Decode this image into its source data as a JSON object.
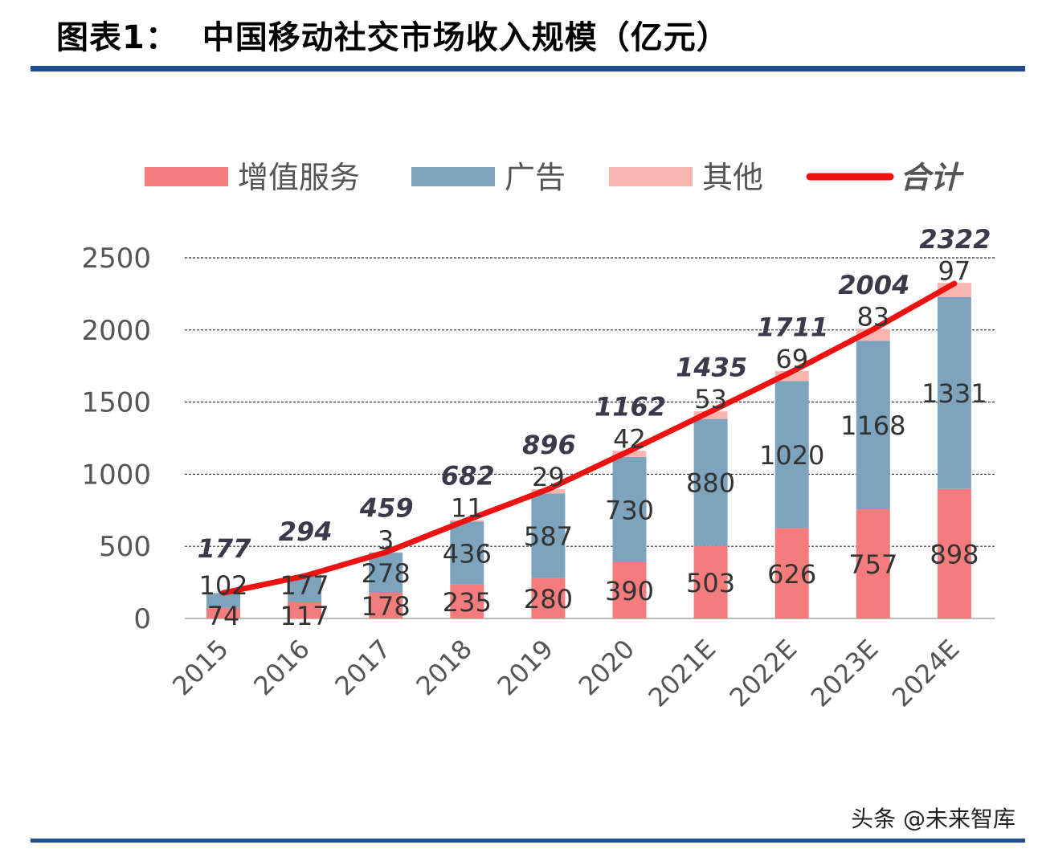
{
  "title": {
    "label": "图表1：",
    "text": "中国移动社交市场收入规模（亿元）"
  },
  "watermark": "头条 @未来智库",
  "colors": {
    "value_added": "#f47c7c",
    "ads": "#7da3bd",
    "other": "#f9b6b0",
    "total": "#ee1111",
    "rule": "#1f4e8f"
  },
  "chart_data": {
    "type": "bar",
    "stacked": true,
    "categories": [
      "2015",
      "2016",
      "2017",
      "2018",
      "2019",
      "2020",
      "2021E",
      "2022E",
      "2023E",
      "2024E"
    ],
    "series": [
      {
        "name": "增值服务",
        "values": [
          74,
          117,
          178,
          235,
          280,
          390,
          503,
          626,
          757,
          898
        ],
        "labels": [
          "74",
          "117",
          "178",
          "235",
          "280",
          "390",
          "503",
          "626",
          "757",
          "898"
        ]
      },
      {
        "name": "广告",
        "values": [
          102,
          177,
          278,
          436,
          587,
          730,
          880,
          1020,
          1168,
          1331
        ],
        "labels": [
          "102",
          "177",
          "278",
          "436",
          "587",
          "730",
          "880",
          "1020",
          "1168",
          "1331"
        ]
      },
      {
        "name": "其他",
        "values": [
          1,
          0,
          3,
          11,
          29,
          42,
          53,
          69,
          83,
          97
        ],
        "labels": [
          "",
          "",
          "3",
          "11",
          "29",
          "42",
          "53",
          "69",
          "83",
          "97"
        ]
      }
    ],
    "line": {
      "name": "合计",
      "values": [
        177,
        294,
        459,
        682,
        896,
        1162,
        1435,
        1711,
        2004,
        2322
      ],
      "labels": [
        "177",
        "294",
        "459",
        "682",
        "896",
        "1162",
        "1435",
        "1711",
        "2004",
        "2322"
      ]
    },
    "yticks": [
      "0",
      "500",
      "1000",
      "1500",
      "2000",
      "2500"
    ],
    "ylim": [
      0,
      2500
    ],
    "grid": "dashed horizontal",
    "legend": "top"
  }
}
